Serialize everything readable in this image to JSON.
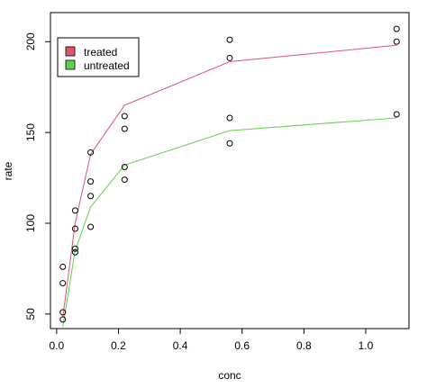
{
  "chart_data": {
    "type": "scatter",
    "title": "",
    "xlabel": "conc",
    "ylabel": "rate",
    "xlim": [
      -0.02,
      1.14
    ],
    "ylim": [
      42,
      216
    ],
    "x_ticks": [
      0.0,
      0.2,
      0.4,
      0.6,
      0.8,
      1.0
    ],
    "x_tick_labels": [
      "0.0",
      "0.2",
      "0.4",
      "0.6",
      "0.8",
      "1.0"
    ],
    "y_ticks": [
      50,
      100,
      150,
      200
    ],
    "y_tick_labels": [
      "50",
      "100",
      "150",
      "200"
    ],
    "legend": {
      "placement": "top-left",
      "entries": [
        {
          "label": "treated",
          "color": "#DF536B"
        },
        {
          "label": "untreated",
          "color": "#61D04F"
        }
      ]
    },
    "points": [
      {
        "x": 0.02,
        "y": 76
      },
      {
        "x": 0.02,
        "y": 47
      },
      {
        "x": 0.06,
        "y": 97
      },
      {
        "x": 0.06,
        "y": 107
      },
      {
        "x": 0.11,
        "y": 123
      },
      {
        "x": 0.11,
        "y": 139
      },
      {
        "x": 0.22,
        "y": 159
      },
      {
        "x": 0.22,
        "y": 152
      },
      {
        "x": 0.56,
        "y": 191
      },
      {
        "x": 0.56,
        "y": 201
      },
      {
        "x": 1.1,
        "y": 207
      },
      {
        "x": 1.1,
        "y": 200
      },
      {
        "x": 0.02,
        "y": 67
      },
      {
        "x": 0.02,
        "y": 51
      },
      {
        "x": 0.06,
        "y": 84
      },
      {
        "x": 0.06,
        "y": 86
      },
      {
        "x": 0.11,
        "y": 98
      },
      {
        "x": 0.11,
        "y": 115
      },
      {
        "x": 0.22,
        "y": 131
      },
      {
        "x": 0.22,
        "y": 124
      },
      {
        "x": 0.56,
        "y": 144
      },
      {
        "x": 0.56,
        "y": 158
      },
      {
        "x": 1.1,
        "y": 160
      }
    ],
    "series": [
      {
        "name": "treated",
        "color": "#DF536B",
        "line": [
          {
            "x": 0.02,
            "y": 48
          },
          {
            "x": 0.06,
            "y": 100
          },
          {
            "x": 0.11,
            "y": 138
          },
          {
            "x": 0.22,
            "y": 165
          },
          {
            "x": 0.56,
            "y": 189
          },
          {
            "x": 1.1,
            "y": 198
          }
        ]
      },
      {
        "name": "untreated",
        "color": "#61D04F",
        "line": [
          {
            "x": 0.02,
            "y": 43
          },
          {
            "x": 0.06,
            "y": 85
          },
          {
            "x": 0.11,
            "y": 109
          },
          {
            "x": 0.22,
            "y": 132
          },
          {
            "x": 0.56,
            "y": 151
          },
          {
            "x": 1.1,
            "y": 158
          }
        ]
      }
    ]
  }
}
